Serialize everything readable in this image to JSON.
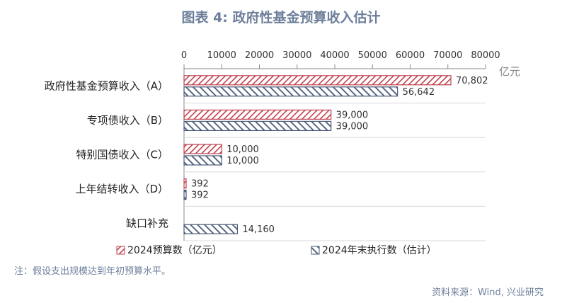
{
  "title": "图表 4:  政府性基金预算收入估计",
  "note": "注：假设支出规模达到年初预算水平。",
  "source": "资料来源：Wind, 兴业研究",
  "colors": {
    "series1": "#c0424f",
    "series2": "#4a5a78",
    "axis": "#888888",
    "grid": "#d9d9d9"
  },
  "chart_data": {
    "type": "bar",
    "orientation": "horizontal",
    "categories": [
      "政府性基金预算收入（A）",
      "专项债收入（B）",
      "特别国债收入（C）",
      "上年结转收入（D）",
      "缺口补充"
    ],
    "series": [
      {
        "name": "2024预算数（亿元）",
        "values": [
          70802,
          39000,
          10000,
          392,
          null
        ],
        "labels": [
          "70,802",
          "39,000",
          "10,000",
          "392",
          ""
        ]
      },
      {
        "name": "2024年末执行数（估计）",
        "values": [
          56642,
          39000,
          10000,
          392,
          14160
        ],
        "labels": [
          "56,642",
          "39,000",
          "10,000",
          "392",
          "14,160"
        ]
      }
    ],
    "xlim": [
      0,
      80000
    ],
    "xticks": [
      0,
      10000,
      20000,
      30000,
      40000,
      50000,
      60000,
      70000,
      80000
    ],
    "xtick_labels": [
      "0",
      "10000",
      "20000",
      "30000",
      "40000",
      "50000",
      "60000",
      "70000",
      "80000"
    ],
    "unit_label": "亿元",
    "axis_position": "top",
    "legend_position": "bottom"
  }
}
